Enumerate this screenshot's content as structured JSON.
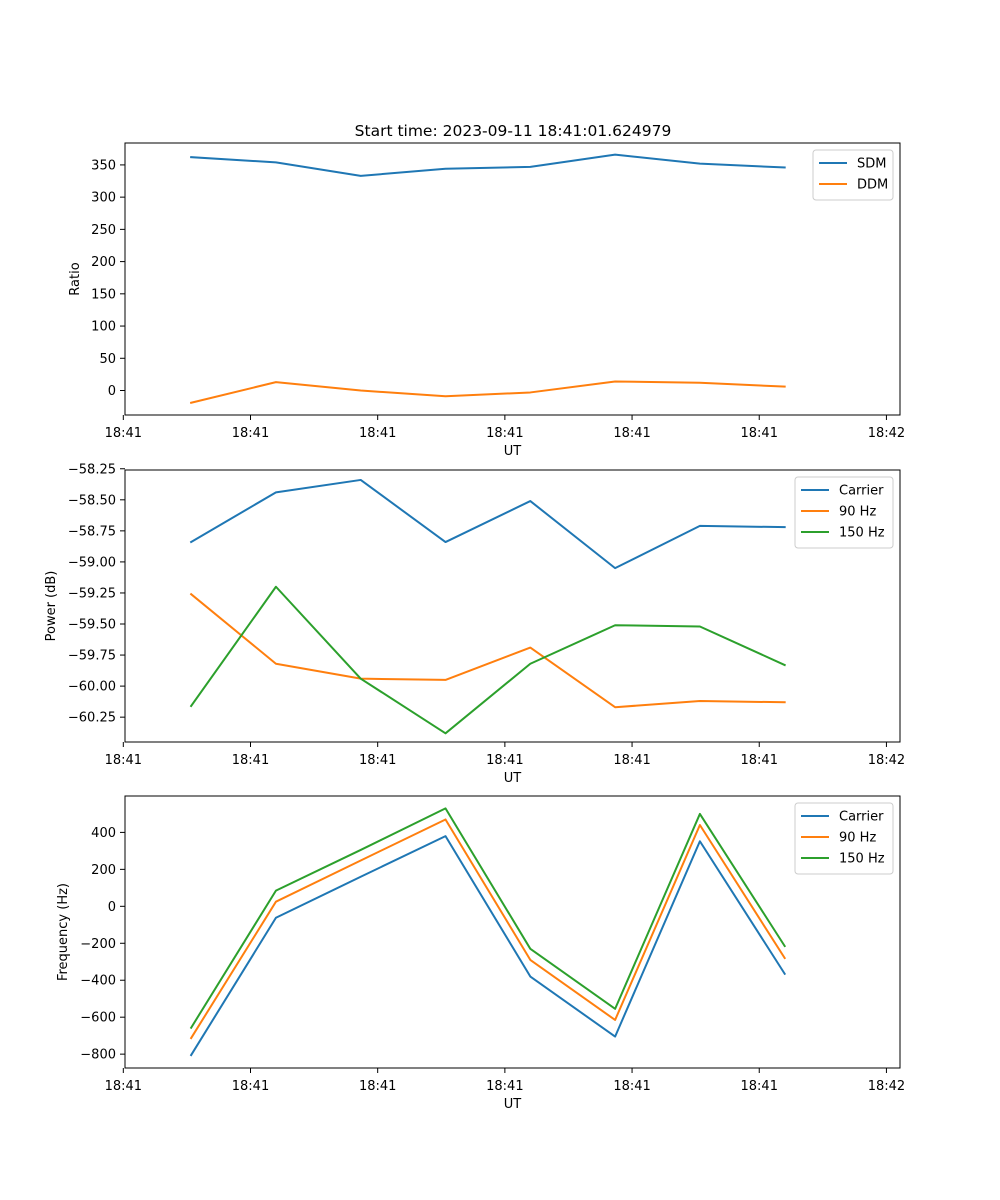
{
  "figure": {
    "title": "Start time: 2023-09-11 18:41:01.624979"
  },
  "chart_data": [
    {
      "type": "line",
      "ylabel": "Ratio",
      "xlabel": "UT",
      "x": [
        1,
        2,
        3,
        4,
        5,
        6,
        7,
        8
      ],
      "xlim": [
        0.22,
        9.36
      ],
      "xticks": [
        0.2,
        1.7,
        3.2,
        4.7,
        6.2,
        7.7,
        9.2
      ],
      "xtick_labels": [
        "18:41",
        "18:41",
        "18:41",
        "18:41",
        "18:41",
        "18:41",
        "18:42"
      ],
      "ylim": [
        -38,
        384
      ],
      "yticks": [
        0,
        50,
        100,
        150,
        200,
        250,
        300,
        350
      ],
      "ytick_labels": [
        "0",
        "50",
        "100",
        "150",
        "200",
        "250",
        "300",
        "350"
      ],
      "legend_position": "top-right",
      "series": [
        {
          "name": "SDM",
          "color": "#1f77b4",
          "values": [
            362,
            354,
            333,
            344,
            347,
            366,
            352,
            346
          ]
        },
        {
          "name": "DDM",
          "color": "#ff7f0e",
          "values": [
            -19,
            13,
            0,
            -9,
            -3,
            14,
            12,
            6
          ]
        }
      ]
    },
    {
      "type": "line",
      "ylabel": "Power (dB)",
      "xlabel": "UT",
      "x": [
        1,
        2,
        3,
        4,
        5,
        6,
        7,
        8
      ],
      "xlim": [
        0.22,
        9.36
      ],
      "xticks": [
        0.2,
        1.7,
        3.2,
        4.7,
        6.2,
        7.7,
        9.2
      ],
      "xtick_labels": [
        "18:41",
        "18:41",
        "18:41",
        "18:41",
        "18:41",
        "18:41",
        "18:42"
      ],
      "ylim": [
        -60.45,
        -58.26
      ],
      "yticks": [
        -60.25,
        -60.0,
        -59.75,
        -59.5,
        -59.25,
        -59.0,
        -58.75,
        -58.5,
        -58.25
      ],
      "ytick_labels": [
        "−60.25",
        "−60.00",
        "−59.75",
        "−59.50",
        "−59.25",
        "−59.00",
        "−58.75",
        "−58.50",
        "−58.25"
      ],
      "legend_position": "top-right",
      "series": [
        {
          "name": "Carrier",
          "color": "#1f77b4",
          "values": [
            -58.84,
            -58.44,
            -58.34,
            -58.84,
            -58.51,
            -59.05,
            -58.71,
            -58.72
          ]
        },
        {
          "name": "90 Hz",
          "color": "#ff7f0e",
          "values": [
            -59.26,
            -59.82,
            -59.94,
            -59.95,
            -59.69,
            -60.17,
            -60.12,
            -60.13
          ]
        },
        {
          "name": "150 Hz",
          "color": "#2ca02c",
          "values": [
            -60.16,
            -59.2,
            -59.94,
            -60.38,
            -59.82,
            -59.51,
            -59.52,
            -59.83
          ]
        }
      ]
    },
    {
      "type": "line",
      "ylabel": "Frequency (Hz)",
      "xlabel": "UT",
      "x": [
        1,
        2,
        3,
        4,
        5,
        6,
        7,
        8
      ],
      "xlim": [
        0.22,
        9.36
      ],
      "xticks": [
        0.2,
        1.7,
        3.2,
        4.7,
        6.2,
        7.7,
        9.2
      ],
      "xtick_labels": [
        "18:41",
        "18:41",
        "18:41",
        "18:41",
        "18:41",
        "18:41",
        "18:42"
      ],
      "ylim": [
        -875,
        597
      ],
      "yticks": [
        -800,
        -600,
        -400,
        -200,
        0,
        200,
        400
      ],
      "ytick_labels": [
        "−800",
        "−600",
        "−400",
        "−200",
        "0",
        "200",
        "400"
      ],
      "legend_position": "top-right",
      "series": [
        {
          "name": "Carrier",
          "color": "#1f77b4",
          "values": [
            -805,
            -62,
            160,
            380,
            -380,
            -705,
            352,
            -365
          ]
        },
        {
          "name": "90 Hz",
          "color": "#ff7f0e",
          "values": [
            -713,
            25,
            248,
            470,
            -290,
            -615,
            440,
            -280
          ]
        },
        {
          "name": "150 Hz",
          "color": "#2ca02c",
          "values": [
            -657,
            85,
            305,
            530,
            -230,
            -555,
            500,
            -215
          ]
        }
      ]
    }
  ]
}
